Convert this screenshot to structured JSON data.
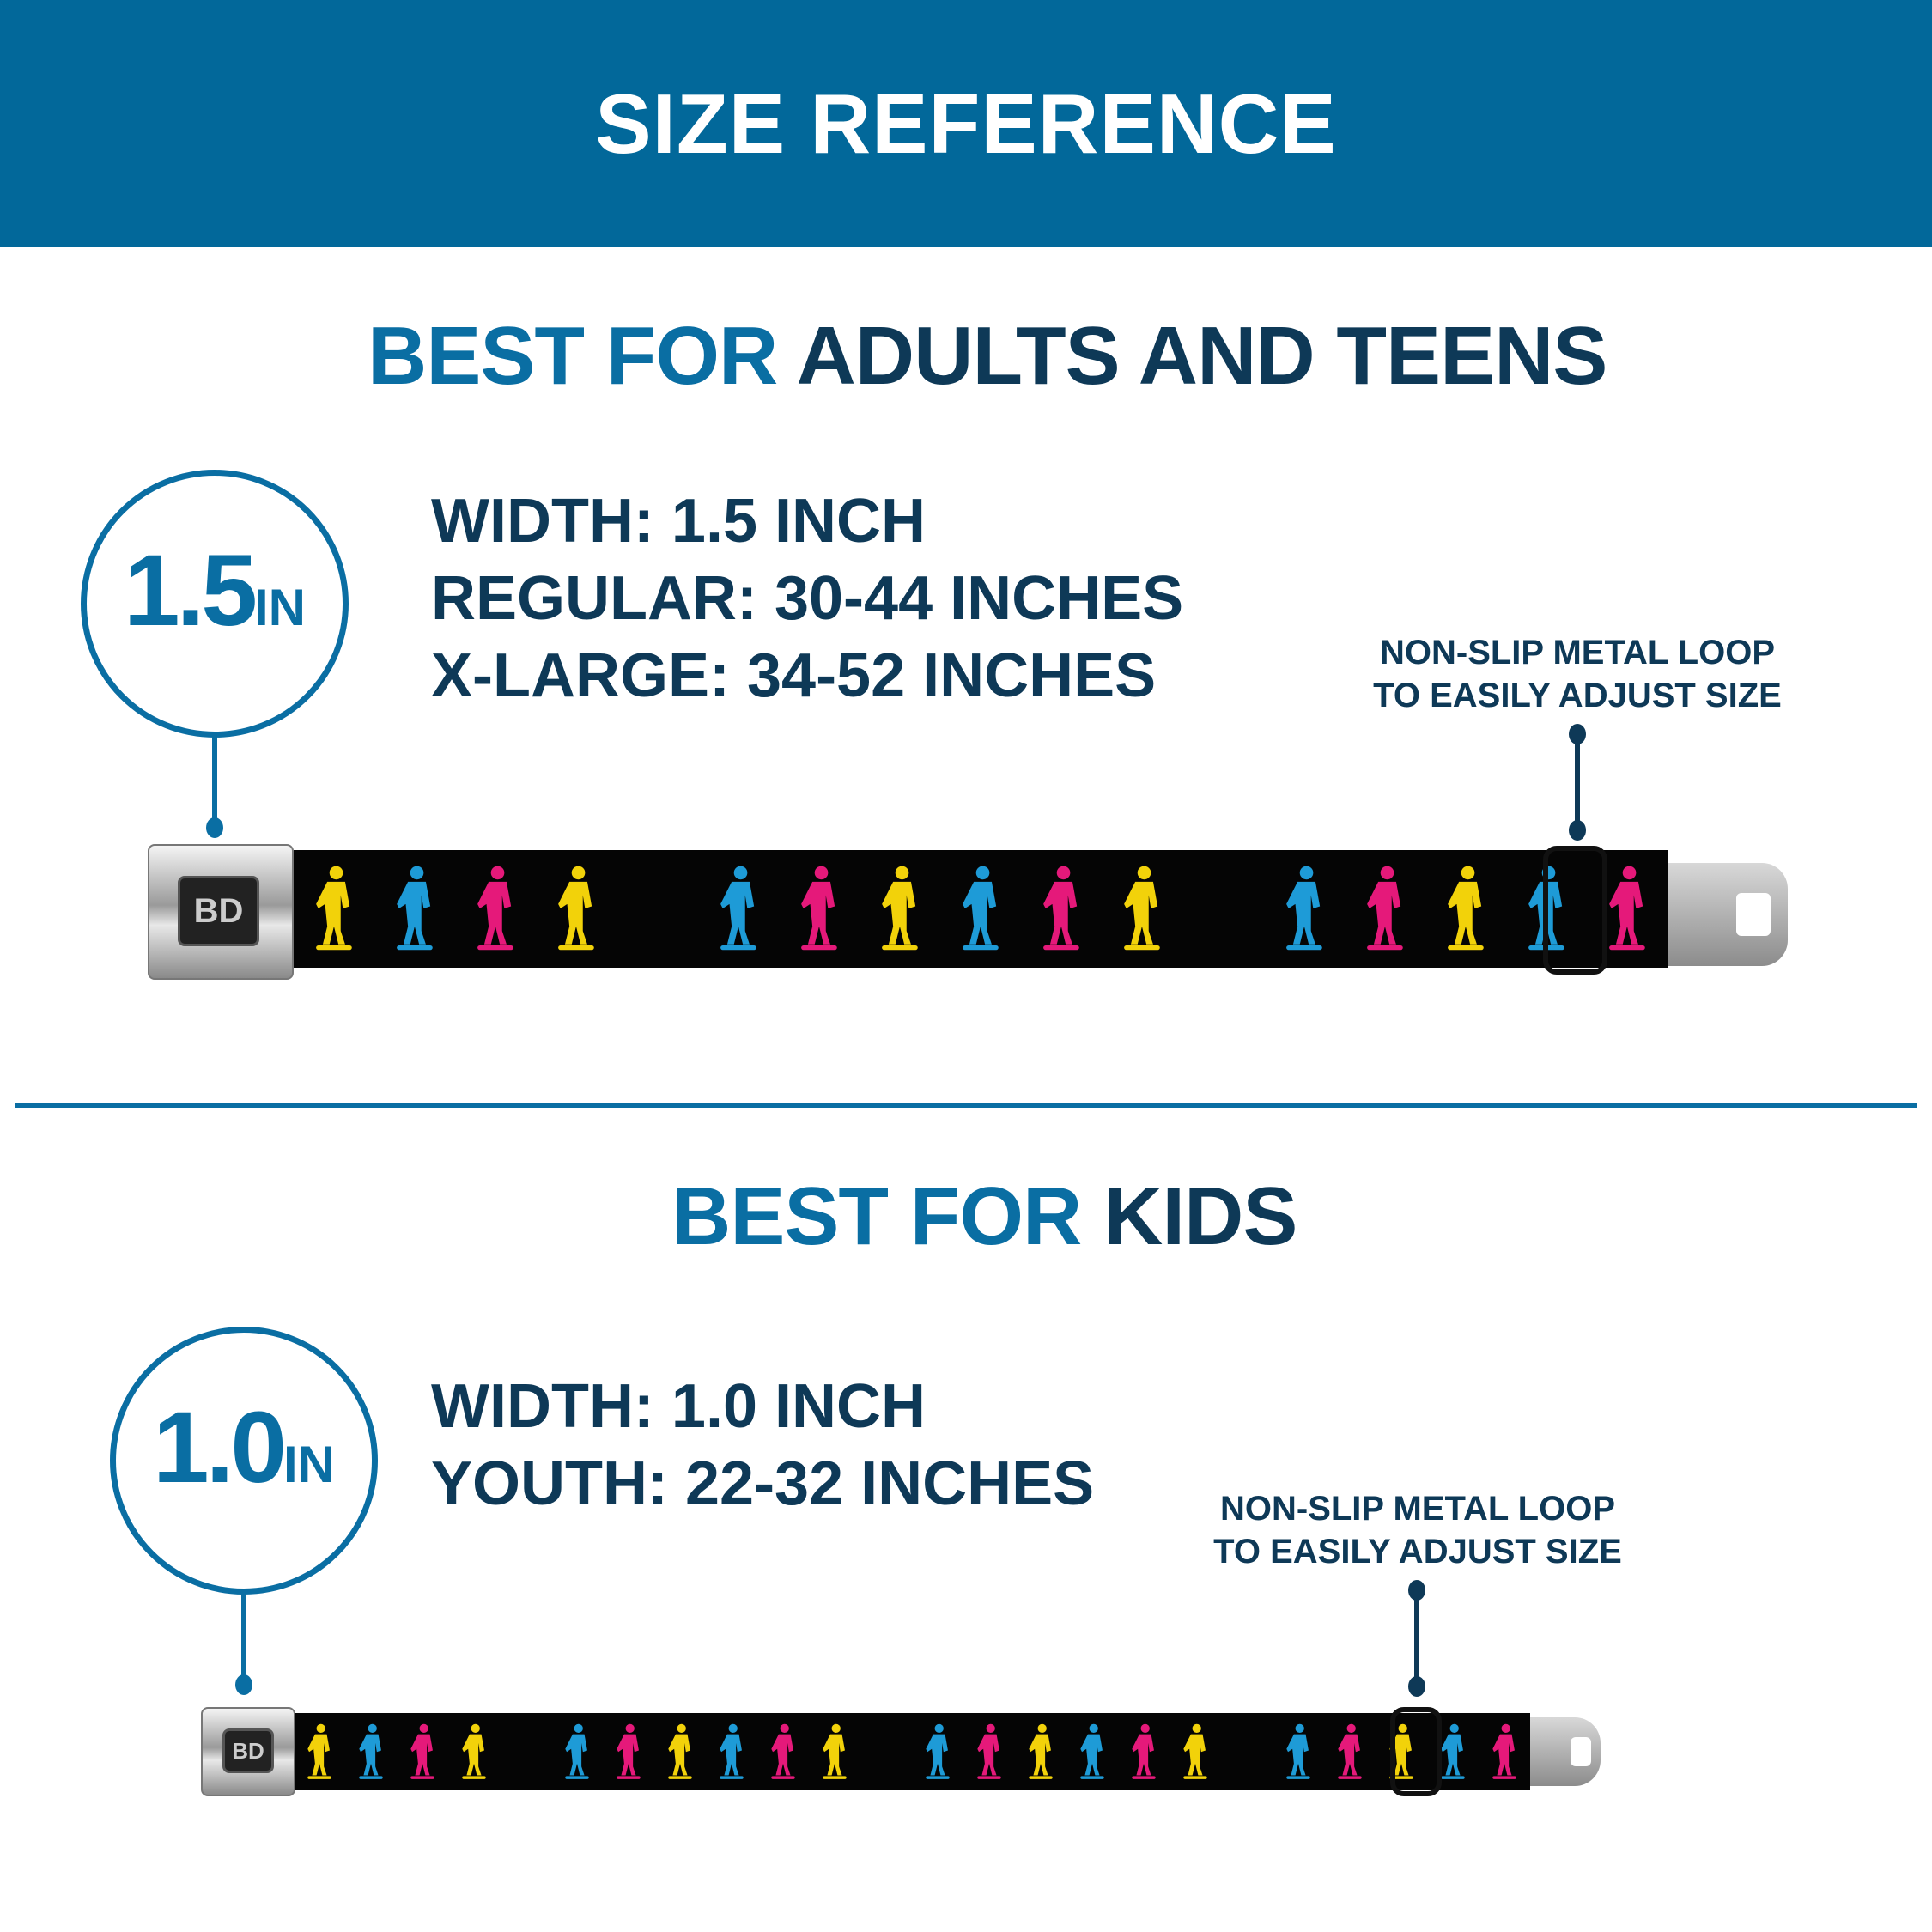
{
  "header": {
    "title": "SIZE REFERENCE"
  },
  "colors": {
    "header_bg": "#02689a",
    "accent": "#0a6ea3",
    "navy": "#0e3957",
    "skater_colors": [
      "#f2d20a",
      "#1e9bd7",
      "#e5197a"
    ]
  },
  "adults": {
    "heading_highlight": "BEST FOR",
    "heading_rest": "ADULTS AND TEENS",
    "badge_number": "1.5",
    "badge_unit": "IN",
    "specs": [
      "WIDTH: 1.5 INCH",
      "REGULAR: 30-44 INCHES",
      "X-LARGE: 34-52 INCHES"
    ],
    "note": [
      "NON-SLIP METAL LOOP",
      "TO EASILY ADJUST SIZE"
    ],
    "buckle_logo": "BD"
  },
  "kids": {
    "heading_highlight": "BEST FOR",
    "heading_rest": "KIDS",
    "badge_number": "1.0",
    "badge_unit": "IN",
    "specs": [
      "WIDTH: 1.0 INCH",
      "YOUTH: 22-32 INCHES"
    ],
    "note": [
      "NON-SLIP METAL LOOP",
      "TO EASILY ADJUST SIZE"
    ],
    "buckle_logo": "BD"
  }
}
